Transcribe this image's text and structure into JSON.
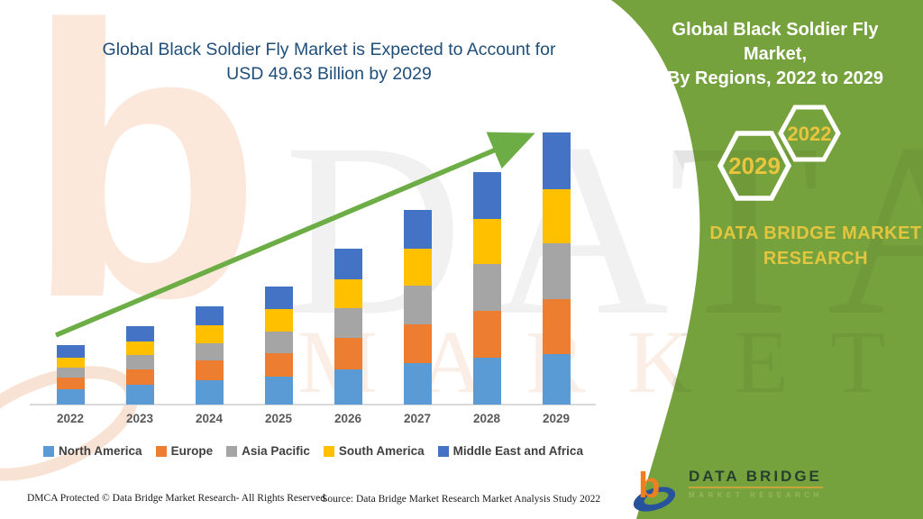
{
  "main_title": {
    "line1": "Global Black Soldier Fly Market is Expected to Account for",
    "line2": "USD 49.63 Billion  by 2029",
    "color": "#1f4e79"
  },
  "panel": {
    "background_color": "#76a23e",
    "title_line1": "Global Black Soldier Fly Market,",
    "title_line2": "By Regions, 2022 to 2029",
    "hexagon_years": {
      "front": "2029",
      "back": "2022"
    },
    "brand_line1": "DATA BRIDGE MARKET",
    "brand_line2": "RESEARCH",
    "accent_gold": "#e3c63f"
  },
  "chart_data": {
    "type": "bar",
    "stacked": true,
    "title": "Global Black Soldier Fly Market, By Regions, 2022 to 2029",
    "unit": "USD Billion",
    "categories": [
      "2022",
      "2023",
      "2024",
      "2025",
      "2026",
      "2027",
      "2028",
      "2029"
    ],
    "series": [
      {
        "name": "North America",
        "color": "#5b9bd5",
        "values": [
          2.8,
          3.6,
          4.4,
          5.1,
          6.4,
          7.6,
          8.6,
          9.2
        ]
      },
      {
        "name": "Europe",
        "color": "#ed7d31",
        "values": [
          2.2,
          2.9,
          3.6,
          4.3,
          5.7,
          7.1,
          8.5,
          10.0
        ]
      },
      {
        "name": "Asia Pacific",
        "color": "#a5a5a5",
        "values": [
          1.8,
          2.5,
          3.2,
          4.0,
          5.5,
          7.0,
          8.6,
          10.2
        ]
      },
      {
        "name": "South America",
        "color": "#ffc000",
        "values": [
          1.8,
          2.5,
          3.2,
          4.0,
          5.3,
          6.8,
          8.2,
          9.9
        ]
      },
      {
        "name": "Middle East and Africa",
        "color": "#4472c4",
        "values": [
          2.2,
          2.9,
          3.5,
          4.1,
          5.5,
          7.0,
          8.6,
          10.33
        ]
      }
    ],
    "totals": [
      10.8,
      14.4,
      17.9,
      21.5,
      28.4,
      35.5,
      42.5,
      49.63
    ],
    "ylim": [
      0,
      50
    ],
    "gridlines": false,
    "legend_position": "bottom",
    "trend_arrow": {
      "present": true,
      "color": "#6cae45"
    },
    "axis_color": "#d9d9d9"
  },
  "footer": {
    "left": "DMCA Protected © Data Bridge Market Research- All Rights Reserved.",
    "right": "Source: Data Bridge Market Research Market Analysis Study 2022"
  },
  "logo": {
    "name": "DATA BRIDGE",
    "subtext": "MARKET RESEARCH"
  },
  "watermark": {
    "line1": "DATA BRIDGE",
    "line2": "MARKET RESEARCH"
  }
}
